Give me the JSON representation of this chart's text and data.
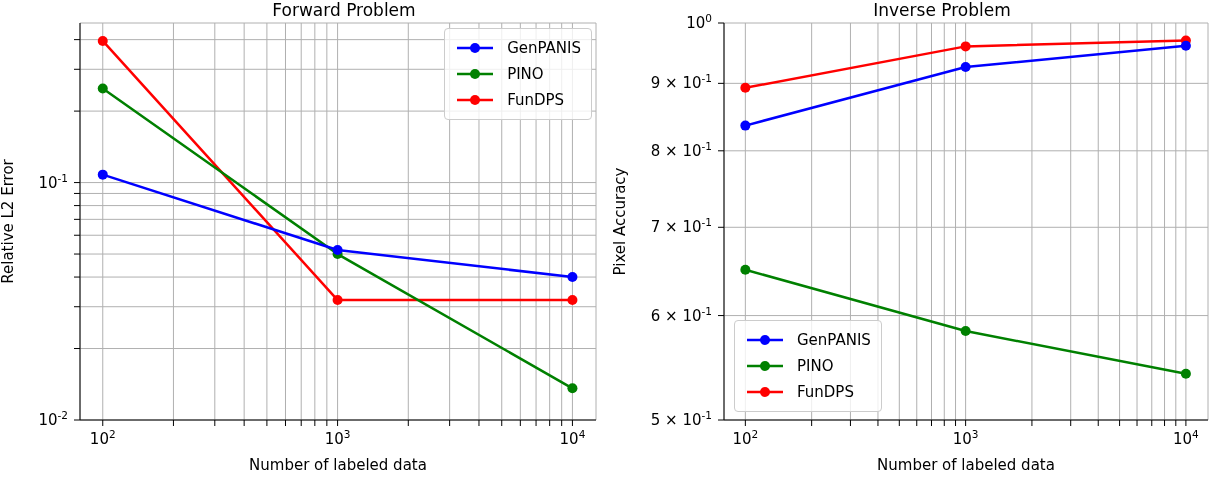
{
  "chart_data": [
    {
      "type": "line",
      "title": "Forward Problem",
      "xlabel": "Number of labeled data",
      "ylabel": "Relative L2 Error",
      "log": "xy",
      "grid": true,
      "legend": "top right",
      "marker": "circle",
      "line_style": "solid",
      "x": [
        100,
        1000,
        10000
      ],
      "series": [
        {
          "name": "GenPANIS",
          "color": "#0000ff",
          "values": [
            0.108,
            0.052,
            0.04
          ]
        },
        {
          "name": "PINO",
          "color": "#008000",
          "values": [
            0.249,
            0.05,
            0.0136
          ]
        },
        {
          "name": "FunDPS",
          "color": "#ff0000",
          "values": [
            0.395,
            0.032,
            0.032
          ]
        }
      ],
      "xlim": [
        80,
        12600
      ],
      "ylim": [
        0.01,
        0.47
      ],
      "xticks": [
        {
          "value": 100,
          "label": "10$^{2}$"
        },
        {
          "value": 200,
          "label": null
        },
        {
          "value": 300,
          "label": null
        },
        {
          "value": 400,
          "label": null
        },
        {
          "value": 500,
          "label": null
        },
        {
          "value": 600,
          "label": null
        },
        {
          "value": 700,
          "label": null
        },
        {
          "value": 800,
          "label": null
        },
        {
          "value": 900,
          "label": null
        },
        {
          "value": 1000,
          "label": "10$^{3}$"
        },
        {
          "value": 2000,
          "label": null
        },
        {
          "value": 3000,
          "label": null
        },
        {
          "value": 4000,
          "label": null
        },
        {
          "value": 5000,
          "label": null
        },
        {
          "value": 6000,
          "label": null
        },
        {
          "value": 7000,
          "label": null
        },
        {
          "value": 8000,
          "label": null
        },
        {
          "value": 9000,
          "label": null
        },
        {
          "value": 10000,
          "label": "10$^{4}$"
        }
      ],
      "yticks": [
        {
          "value": 0.01,
          "label": "10$^{-2}$"
        },
        {
          "value": 0.02,
          "label": null
        },
        {
          "value": 0.03,
          "label": null
        },
        {
          "value": 0.04,
          "label": null
        },
        {
          "value": 0.05,
          "label": null
        },
        {
          "value": 0.06,
          "label": null
        },
        {
          "value": 0.07,
          "label": null
        },
        {
          "value": 0.08,
          "label": null
        },
        {
          "value": 0.09,
          "label": null
        },
        {
          "value": 0.1,
          "label": "10$^{-1}$"
        },
        {
          "value": 0.2,
          "label": null
        },
        {
          "value": 0.3,
          "label": null
        },
        {
          "value": 0.4,
          "label": null
        }
      ]
    },
    {
      "type": "line",
      "title": "Inverse Problem",
      "xlabel": "Number of labeled data",
      "ylabel": "Pixel Accuracy",
      "log": "xy",
      "grid": true,
      "legend": "bottom left",
      "marker": "circle",
      "line_style": "solid",
      "x": [
        100,
        1000,
        10000
      ],
      "series": [
        {
          "name": "GenPANIS",
          "color": "#0000ff",
          "values": [
            0.836,
            0.926,
            0.961
          ]
        },
        {
          "name": "PINO",
          "color": "#008000",
          "values": [
            0.65,
            0.584,
            0.542
          ]
        },
        {
          "name": "FunDPS",
          "color": "#ff0000",
          "values": [
            0.893,
            0.96,
            0.97
          ]
        }
      ],
      "xlim": [
        80,
        12600
      ],
      "ylim": [
        0.5,
        1
      ],
      "xticks": [
        {
          "value": 100,
          "label": "10$^{2}$"
        },
        {
          "value": 200,
          "label": null
        },
        {
          "value": 300,
          "label": null
        },
        {
          "value": 400,
          "label": null
        },
        {
          "value": 500,
          "label": null
        },
        {
          "value": 600,
          "label": null
        },
        {
          "value": 700,
          "label": null
        },
        {
          "value": 800,
          "label": null
        },
        {
          "value": 900,
          "label": null
        },
        {
          "value": 1000,
          "label": "10$^{3}$"
        },
        {
          "value": 2000,
          "label": null
        },
        {
          "value": 3000,
          "label": null
        },
        {
          "value": 4000,
          "label": null
        },
        {
          "value": 5000,
          "label": null
        },
        {
          "value": 6000,
          "label": null
        },
        {
          "value": 7000,
          "label": null
        },
        {
          "value": 8000,
          "label": null
        },
        {
          "value": 9000,
          "label": null
        },
        {
          "value": 10000,
          "label": "10$^{4}$"
        }
      ],
      "yticks": [
        {
          "value": 0.5,
          "label": "5 × 10$^{-1}$"
        },
        {
          "value": 0.6,
          "label": "6 × 10$^{-1}$"
        },
        {
          "value": 0.7,
          "label": "7 × 10$^{-1}$"
        },
        {
          "value": 0.8,
          "label": "8 × 10$^{-1}$"
        },
        {
          "value": 0.9,
          "label": "9 × 10$^{-1}$"
        },
        {
          "value": 1,
          "label": "10$^{0}$"
        }
      ]
    }
  ]
}
